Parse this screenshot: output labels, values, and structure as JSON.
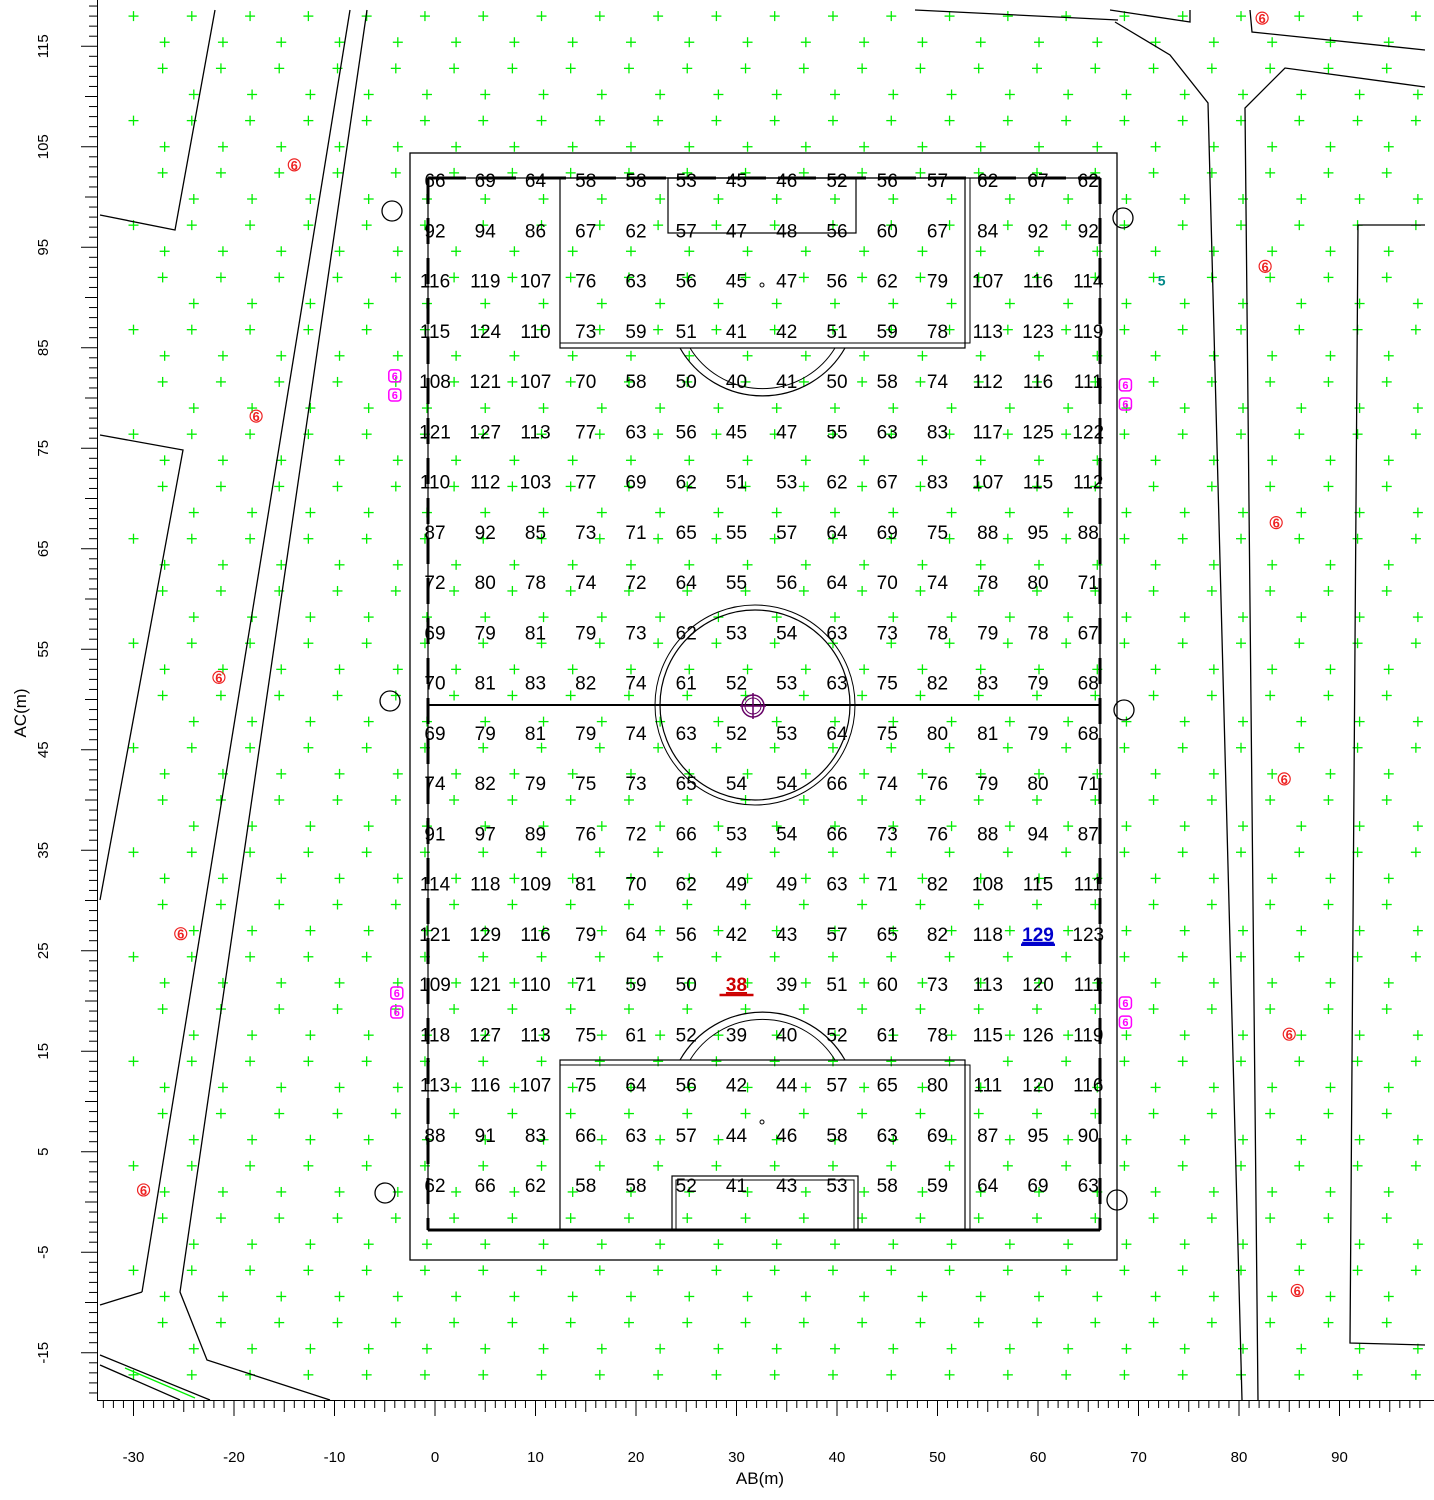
{
  "axes": {
    "x_label": "AB(m)",
    "y_label": "AC(m)",
    "x_ticks": [
      -30,
      -20,
      -10,
      0,
      10,
      20,
      30,
      40,
      50,
      60,
      70,
      80,
      90
    ],
    "y_ticks": [
      115,
      105,
      95,
      85,
      75,
      65,
      55,
      45,
      35,
      25,
      15,
      5,
      -5,
      -15
    ],
    "x_range": [
      -33.3,
      98.5
    ],
    "y_range": [
      -19.5,
      119.5
    ]
  },
  "colors": {
    "grid_cross": "#00ee00",
    "lines": "#000000",
    "max_value": "#0000cc",
    "min_value": "#cc0000",
    "pole_marker": "#ee2222",
    "luminaire": "#ff00ff",
    "label_5": "#008888",
    "center_symbol": "#660066"
  },
  "field": {
    "x_positions": [
      0,
      5,
      10,
      15,
      20,
      25,
      30,
      35,
      40,
      45,
      50,
      55,
      60,
      65
    ],
    "y_positions": [
      100,
      95,
      90,
      85,
      80,
      75,
      70,
      65,
      60,
      55,
      50,
      45,
      40,
      35,
      30,
      25,
      20,
      15,
      10,
      5,
      0
    ],
    "values": [
      [
        "66",
        "69",
        "64",
        "58",
        "58",
        "53",
        "45",
        "46",
        "52",
        "56",
        "57",
        "62",
        "67",
        "62"
      ],
      [
        "92",
        "94",
        "86",
        "67",
        "62",
        "57",
        "47",
        "48",
        "56",
        "60",
        "67",
        "84",
        "92",
        "92"
      ],
      [
        "116",
        "119",
        "107",
        "76",
        "63",
        "56",
        "45",
        "47",
        "56",
        "62",
        "79",
        "107",
        "116",
        "114"
      ],
      [
        "115",
        "124",
        "110",
        "73",
        "59",
        "51",
        "41",
        "42",
        "51",
        "59",
        "78",
        "113",
        "123",
        "119"
      ],
      [
        "108",
        "121",
        "107",
        "70",
        "58",
        "50",
        "40",
        "41",
        "50",
        "58",
        "74",
        "112",
        "116",
        "111"
      ],
      [
        "121",
        "127",
        "113",
        "77",
        "63",
        "56",
        "45",
        "47",
        "55",
        "63",
        "83",
        "117",
        "125",
        "122"
      ],
      [
        "110",
        "112",
        "103",
        "77",
        "69",
        "62",
        "51",
        "53",
        "62",
        "67",
        "83",
        "107",
        "115",
        "112"
      ],
      [
        "87",
        "92",
        "85",
        "73",
        "71",
        "65",
        "55",
        "57",
        "64",
        "69",
        "75",
        "88",
        "95",
        "88"
      ],
      [
        "72",
        "80",
        "78",
        "74",
        "72",
        "64",
        "55",
        "56",
        "64",
        "70",
        "74",
        "78",
        "80",
        "71"
      ],
      [
        "69",
        "79",
        "81",
        "79",
        "73",
        "62",
        "53",
        "54",
        "63",
        "73",
        "78",
        "79",
        "78",
        "67"
      ],
      [
        "70",
        "81",
        "83",
        "82",
        "74",
        "61",
        "52",
        "53",
        "63",
        "75",
        "82",
        "83",
        "79",
        "68"
      ],
      [
        "69",
        "79",
        "81",
        "79",
        "74",
        "63",
        "52",
        "53",
        "64",
        "75",
        "80",
        "81",
        "79",
        "68"
      ],
      [
        "74",
        "82",
        "79",
        "75",
        "73",
        "65",
        "54",
        "54",
        "66",
        "74",
        "76",
        "79",
        "80",
        "71"
      ],
      [
        "91",
        "97",
        "89",
        "76",
        "72",
        "66",
        "53",
        "54",
        "66",
        "73",
        "76",
        "88",
        "94",
        "87"
      ],
      [
        "114",
        "118",
        "109",
        "81",
        "70",
        "62",
        "49",
        "49",
        "63",
        "71",
        "82",
        "108",
        "115",
        "111"
      ],
      [
        "121",
        "129",
        "116",
        "79",
        "64",
        "56",
        "42",
        "43",
        "57",
        "65",
        "82",
        "118",
        "129",
        "123"
      ],
      [
        "109",
        "121",
        "110",
        "71",
        "59",
        "50",
        "38",
        "39",
        "51",
        "60",
        "73",
        "113",
        "120",
        "111"
      ],
      [
        "118",
        "127",
        "113",
        "75",
        "61",
        "52",
        "39",
        "40",
        "52",
        "61",
        "78",
        "115",
        "126",
        "119"
      ],
      [
        "113",
        "116",
        "107",
        "75",
        "64",
        "56",
        "42",
        "44",
        "57",
        "65",
        "80",
        "111",
        "120",
        "116"
      ],
      [
        "88",
        "91",
        "83",
        "66",
        "63",
        "57",
        "44",
        "46",
        "58",
        "63",
        "69",
        "87",
        "95",
        "90"
      ],
      [
        "62",
        "66",
        "62",
        "58",
        "58",
        "52",
        "41",
        "43",
        "53",
        "58",
        "59",
        "64",
        "69",
        "63"
      ]
    ],
    "max_cell": [
      15,
      12
    ],
    "min_cell": [
      16,
      6
    ]
  },
  "pole_labels": [
    {
      "text": "6",
      "x": -14,
      "y": 103.2
    },
    {
      "text": "6",
      "x": -17.8,
      "y": 78.2
    },
    {
      "text": "6",
      "x": -21.5,
      "y": 52.2
    },
    {
      "text": "6",
      "x": -25.3,
      "y": 26.7
    },
    {
      "text": "6",
      "x": -29,
      "y": 1.2
    },
    {
      "text": "6",
      "x": 82.3,
      "y": 117.8
    },
    {
      "text": "6",
      "x": 82.6,
      "y": 93.1
    },
    {
      "text": "6",
      "x": 83.7,
      "y": 67.6
    },
    {
      "text": "6",
      "x": 84.5,
      "y": 42.1
    },
    {
      "text": "6",
      "x": 85,
      "y": 16.7
    },
    {
      "text": "6",
      "x": 85.8,
      "y": -8.8
    }
  ],
  "teal_label": {
    "text": "5",
    "x": 72.3,
    "y": 91.7
  },
  "luminaire_labels": [
    {
      "text": "6",
      "x": -4,
      "y": 82.2
    },
    {
      "text": "6",
      "x": -4,
      "y": 80.3
    },
    {
      "text": "6",
      "x": -3.8,
      "y": 20.8
    },
    {
      "text": "6",
      "x": -3.8,
      "y": 18.9
    },
    {
      "text": "6",
      "x": 68.7,
      "y": 81.3
    },
    {
      "text": "6",
      "x": 68.7,
      "y": 79.4
    },
    {
      "text": "6",
      "x": 68.7,
      "y": 19.8
    },
    {
      "text": "6",
      "x": 68.7,
      "y": 17.9
    }
  ]
}
